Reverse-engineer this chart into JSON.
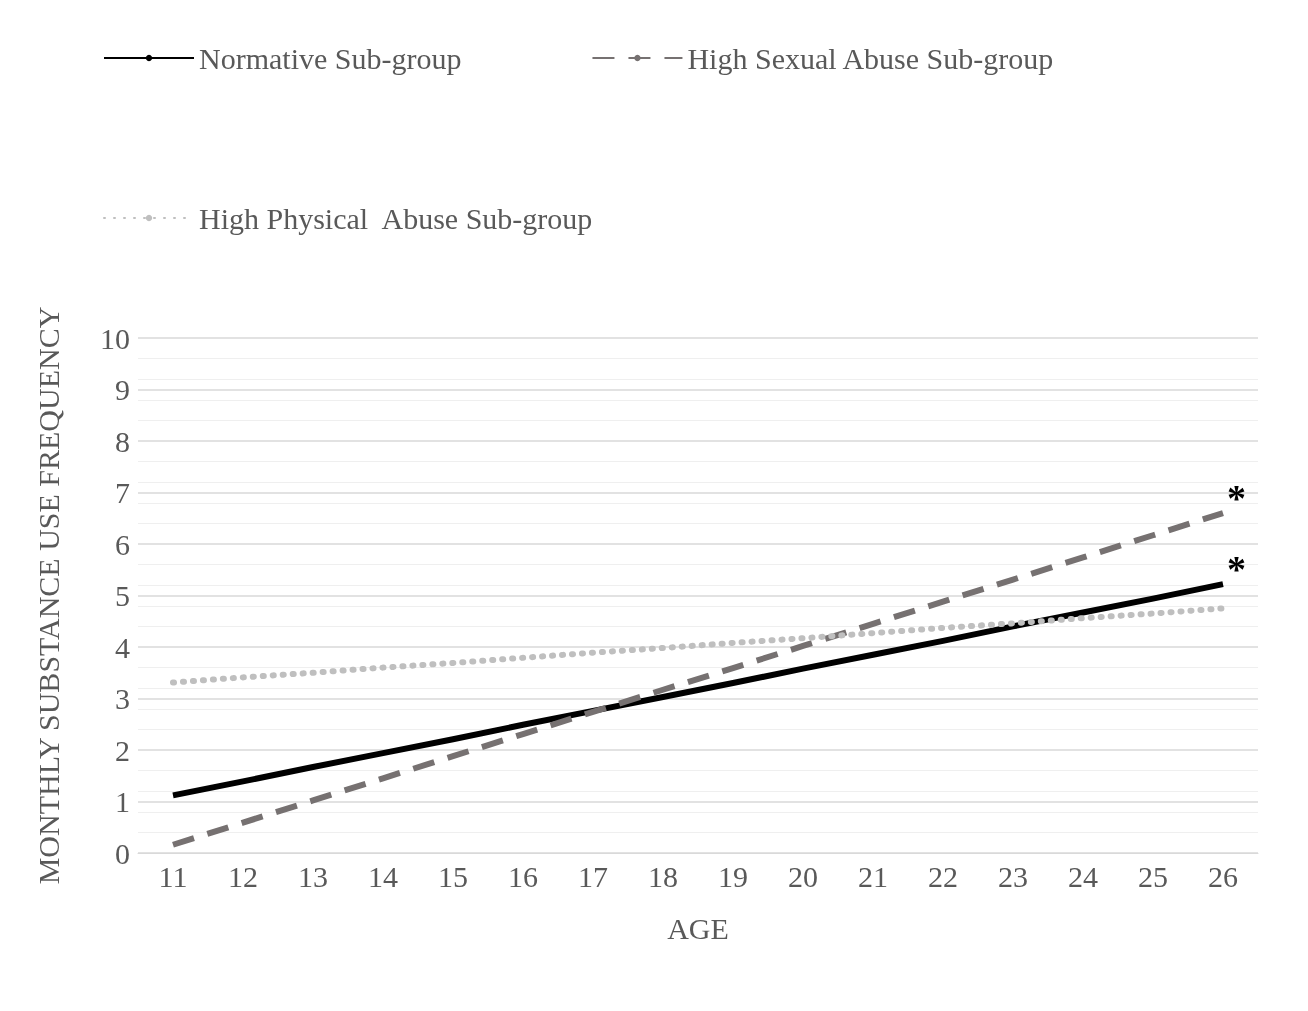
{
  "chart_data": {
    "type": "line",
    "xlabel": "AGE",
    "ylabel": "MONTHLY SUBSTANCE USE FREQUENCY",
    "categories": [
      "11",
      "12",
      "13",
      "14",
      "15",
      "16",
      "17",
      "18",
      "19",
      "20",
      "21",
      "22",
      "23",
      "24",
      "25",
      "26"
    ],
    "series": [
      {
        "name": "Normative Sub-group",
        "color": "#000000",
        "line_style": "solid",
        "values": [
          1.12,
          1.39,
          1.67,
          1.94,
          2.21,
          2.49,
          2.76,
          3.03,
          3.3,
          3.58,
          3.85,
          4.12,
          4.4,
          4.67,
          4.94,
          5.22
        ]
      },
      {
        "name": "High Sexual Abuse Sub-group",
        "color": "#767171",
        "line_style": "dashed",
        "values": [
          0.16,
          0.59,
          1.02,
          1.45,
          1.88,
          2.31,
          2.74,
          3.17,
          3.59,
          4.02,
          4.45,
          4.88,
          5.31,
          5.74,
          6.17,
          6.6
        ]
      },
      {
        "name": "High Physical  Abuse Sub-group",
        "color": "#bfbfbf",
        "line_style": "dotted",
        "values": [
          3.31,
          3.41,
          3.5,
          3.6,
          3.69,
          3.79,
          3.89,
          3.98,
          4.08,
          4.17,
          4.27,
          4.37,
          4.46,
          4.56,
          4.65,
          4.75
        ]
      }
    ],
    "ylim": [
      0,
      10
    ],
    "yticks": [
      0,
      1,
      2,
      3,
      4,
      5,
      6,
      7,
      8,
      9,
      10
    ],
    "grid": "y",
    "legend": "top left",
    "marker": "none",
    "annotations": [
      {
        "text": "*",
        "x": "26",
        "y": 6.6
      },
      {
        "text": "*",
        "x": "26",
        "y": 5.22
      }
    ]
  }
}
